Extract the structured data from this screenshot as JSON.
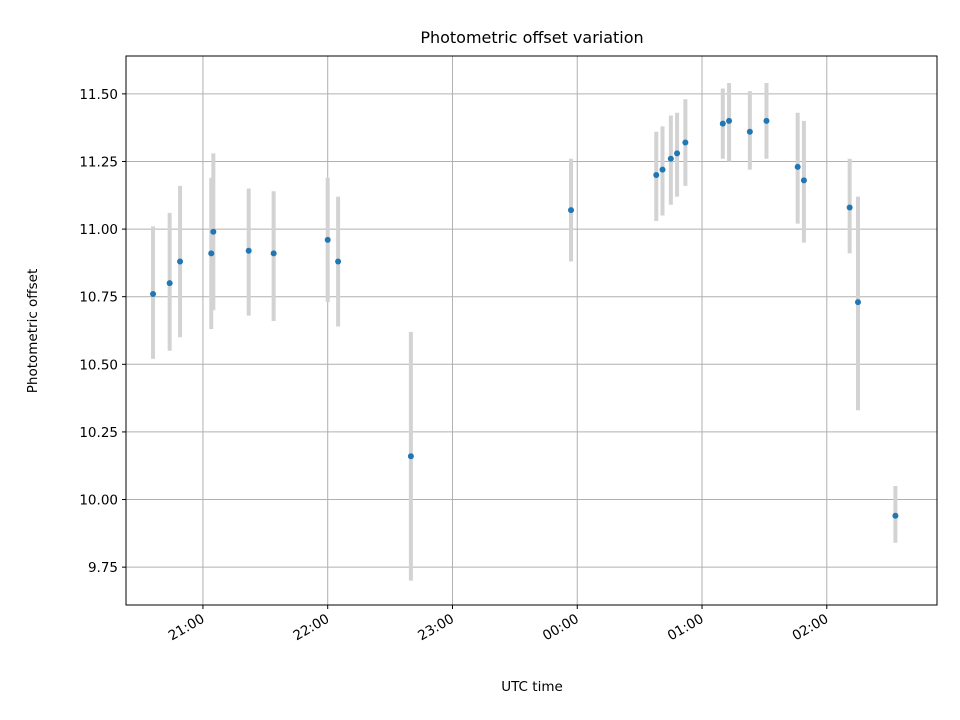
{
  "chart_data": {
    "type": "scatter",
    "title": "Photometric offset variation",
    "xlabel": "UTC time",
    "ylabel": "Photometric offset",
    "x_ticks": [
      "21:00",
      "22:00",
      "23:00",
      "00:00",
      "01:00",
      "02:00"
    ],
    "y_ticks": [
      "9.75",
      "10.00",
      "10.25",
      "10.50",
      "10.75",
      "11.00",
      "11.25",
      "11.50"
    ],
    "xlim": [
      "20:23",
      "02:53"
    ],
    "ylim": [
      9.61,
      11.64
    ],
    "grid": true,
    "point_color": "#1f77b4",
    "errorbar_color": "#d3d3d3",
    "points": [
      {
        "x": "20:36",
        "y": 10.76,
        "lo": 10.52,
        "hi": 11.01
      },
      {
        "x": "20:44",
        "y": 10.8,
        "lo": 10.55,
        "hi": 11.06
      },
      {
        "x": "20:49",
        "y": 10.88,
        "lo": 10.6,
        "hi": 11.16
      },
      {
        "x": "21:04",
        "y": 10.91,
        "lo": 10.63,
        "hi": 11.19
      },
      {
        "x": "21:05",
        "y": 10.99,
        "lo": 10.7,
        "hi": 11.28
      },
      {
        "x": "21:22",
        "y": 10.92,
        "lo": 10.68,
        "hi": 11.15
      },
      {
        "x": "21:34",
        "y": 10.91,
        "lo": 10.66,
        "hi": 11.14
      },
      {
        "x": "22:00",
        "y": 10.96,
        "lo": 10.73,
        "hi": 11.19
      },
      {
        "x": "22:05",
        "y": 10.88,
        "lo": 10.64,
        "hi": 11.12
      },
      {
        "x": "22:40",
        "y": 10.16,
        "lo": 9.7,
        "hi": 10.62
      },
      {
        "x": "23:57",
        "y": 11.07,
        "lo": 10.88,
        "hi": 11.26
      },
      {
        "x": "00:38",
        "y": 11.2,
        "lo": 11.03,
        "hi": 11.36
      },
      {
        "x": "00:41",
        "y": 11.22,
        "lo": 11.05,
        "hi": 11.38
      },
      {
        "x": "00:45",
        "y": 11.26,
        "lo": 11.09,
        "hi": 11.42
      },
      {
        "x": "00:48",
        "y": 11.28,
        "lo": 11.12,
        "hi": 11.43
      },
      {
        "x": "00:52",
        "y": 11.32,
        "lo": 11.16,
        "hi": 11.48
      },
      {
        "x": "01:10",
        "y": 11.39,
        "lo": 11.26,
        "hi": 11.52
      },
      {
        "x": "01:13",
        "y": 11.4,
        "lo": 11.25,
        "hi": 11.54
      },
      {
        "x": "01:23",
        "y": 11.36,
        "lo": 11.22,
        "hi": 11.51
      },
      {
        "x": "01:31",
        "y": 11.4,
        "lo": 11.26,
        "hi": 11.54
      },
      {
        "x": "01:46",
        "y": 11.23,
        "lo": 11.02,
        "hi": 11.43
      },
      {
        "x": "01:49",
        "y": 11.18,
        "lo": 10.95,
        "hi": 11.4
      },
      {
        "x": "02:11",
        "y": 11.08,
        "lo": 10.91,
        "hi": 11.26
      },
      {
        "x": "02:15",
        "y": 10.73,
        "lo": 10.33,
        "hi": 11.12
      },
      {
        "x": "02:33",
        "y": 9.94,
        "lo": 9.84,
        "hi": 10.05
      }
    ]
  }
}
